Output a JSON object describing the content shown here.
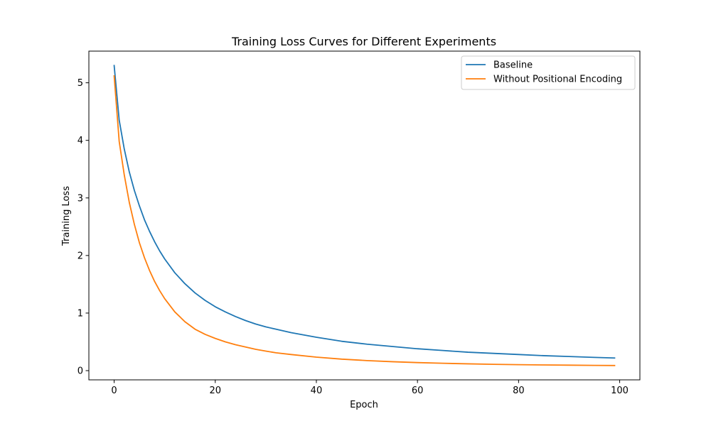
{
  "chart_data": {
    "type": "line",
    "title": "Training Loss Curves for Different Experiments",
    "xlabel": "Epoch",
    "ylabel": "Training Loss",
    "xlim": [
      -5,
      104
    ],
    "ylim": [
      -0.16,
      5.55
    ],
    "xticks": [
      0,
      20,
      40,
      60,
      80,
      100
    ],
    "yticks": [
      0,
      1,
      2,
      3,
      4,
      5
    ],
    "grid": false,
    "legend_position": "upper right",
    "x": [
      0,
      1,
      2,
      3,
      4,
      5,
      6,
      7,
      8,
      9,
      10,
      12,
      14,
      16,
      18,
      20,
      22,
      24,
      26,
      28,
      30,
      32,
      35,
      40,
      45,
      50,
      55,
      60,
      65,
      70,
      75,
      80,
      85,
      90,
      95,
      99
    ],
    "series": [
      {
        "name": "Baseline",
        "color": "#1f77b4",
        "values": [
          5.3,
          4.35,
          3.85,
          3.45,
          3.13,
          2.86,
          2.62,
          2.42,
          2.24,
          2.08,
          1.94,
          1.7,
          1.51,
          1.35,
          1.22,
          1.11,
          1.02,
          0.94,
          0.87,
          0.81,
          0.76,
          0.72,
          0.66,
          0.58,
          0.51,
          0.46,
          0.42,
          0.38,
          0.35,
          0.32,
          0.3,
          0.28,
          0.26,
          0.245,
          0.23,
          0.22
        ]
      },
      {
        "name": "Without Positional Encoding",
        "color": "#ff7f0e",
        "values": [
          5.12,
          3.98,
          3.4,
          2.92,
          2.54,
          2.22,
          1.96,
          1.74,
          1.55,
          1.39,
          1.25,
          1.02,
          0.85,
          0.72,
          0.63,
          0.56,
          0.5,
          0.45,
          0.41,
          0.37,
          0.34,
          0.31,
          0.28,
          0.235,
          0.2,
          0.175,
          0.155,
          0.14,
          0.128,
          0.118,
          0.11,
          0.104,
          0.099,
          0.095,
          0.091,
          0.089
        ]
      }
    ]
  }
}
